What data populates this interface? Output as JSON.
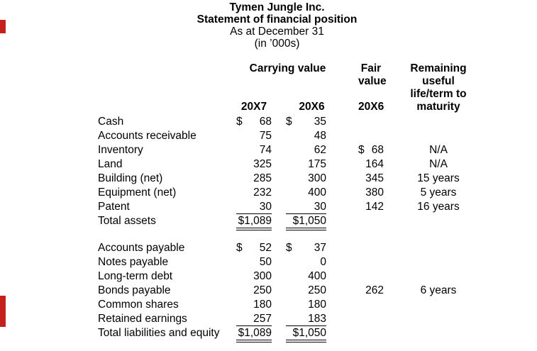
{
  "title": {
    "company": "Tymen Jungle Inc.",
    "statement": "Statement of financial position",
    "date_line": "As at December 31",
    "units_line": "(in ’000s)"
  },
  "header": {
    "carrying_value": "Carrying value",
    "fair_line1": "Fair",
    "fair_line2": "value",
    "remaining_line1": "Remaining",
    "remaining_line2": "useful",
    "remaining_line3": "life/term to",
    "remaining_line4": "maturity",
    "col_20x7": "20X7",
    "col_20x6": "20X6",
    "col_fair_20x6": "20X6"
  },
  "annotations": {
    "mark_color": "#c5211c"
  },
  "sections": [
    {
      "name": "assets",
      "rows": [
        {
          "label": "Cash",
          "c1_dollar": "$",
          "c1": "68",
          "c2_dollar": "$",
          "c2": "35"
        },
        {
          "label": "Accounts receivable",
          "c1": "75",
          "c2": "48"
        },
        {
          "label": "Inventory",
          "c1": "74",
          "c2": "62",
          "fair_dollar": "$",
          "fair": "68",
          "term": "N/A"
        },
        {
          "label": "Land",
          "c1": "325",
          "c2": "175",
          "fair": "164",
          "term": "N/A"
        },
        {
          "label": "Building (net)",
          "c1": "285",
          "c2": "300",
          "fair": "345",
          "term": "15 years"
        },
        {
          "label": "Equipment (net)",
          "c1": "232",
          "c2": "400",
          "fair": "380",
          "term": "5 years"
        },
        {
          "label": "Patent",
          "c1": "30",
          "c2": "30",
          "fair": "142",
          "term": "16 years",
          "underline": "single"
        },
        {
          "label": "Total assets",
          "c1": "$1,089",
          "c2": "$1,050",
          "underline": "double"
        }
      ]
    },
    {
      "name": "liabilities_and_equity",
      "rows": [
        {
          "label": "Accounts payable",
          "c1_dollar": "$",
          "c1": "52",
          "c2_dollar": "$",
          "c2": "37"
        },
        {
          "label": "Notes payable",
          "c1": "50",
          "c2": "0"
        },
        {
          "label": "Long-term debt",
          "c1": "300",
          "c2": "400"
        },
        {
          "label": "Bonds payable",
          "c1": "250",
          "c2": "250",
          "fair": "262",
          "term": "6 years"
        },
        {
          "label": "Common shares",
          "c1": "180",
          "c2": "180"
        },
        {
          "label": "Retained earnings",
          "c1": "257",
          "c2": "183",
          "underline": "single"
        },
        {
          "label": "Total liabilities and equity",
          "c1": "$1,089",
          "c2": "$1,050",
          "underline": "double"
        }
      ]
    }
  ]
}
